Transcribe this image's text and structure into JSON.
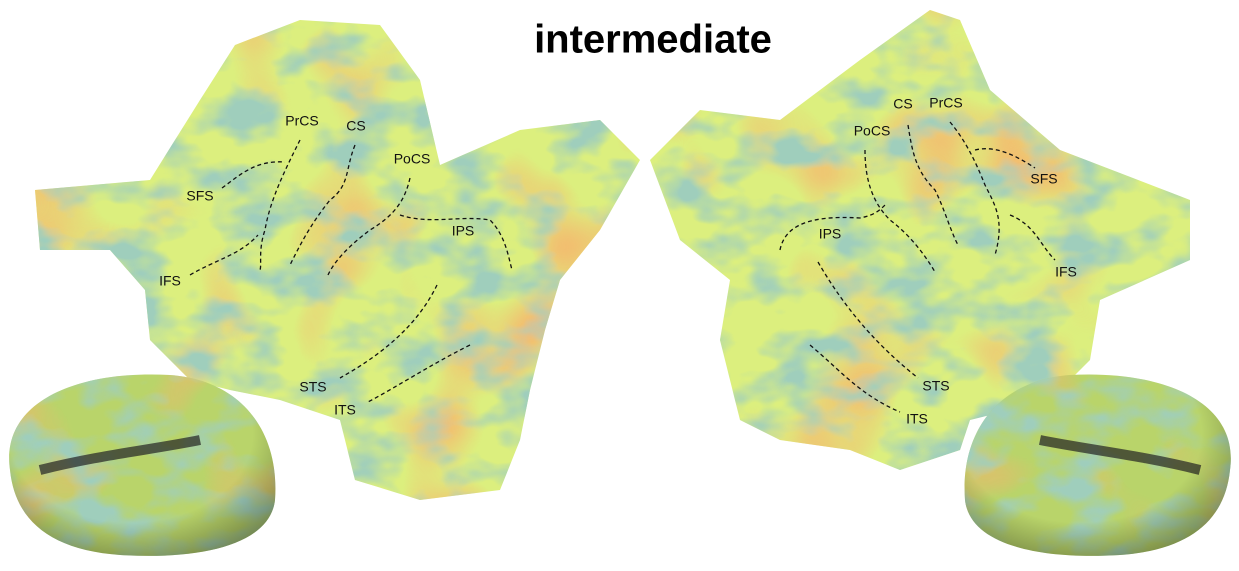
{
  "title": "intermediate",
  "left_hemisphere": {
    "labels": [
      "PrCS",
      "CS",
      "PoCS",
      "SFS",
      "IPS",
      "IFS",
      "STS",
      "ITS"
    ]
  },
  "right_hemisphere": {
    "labels": [
      "CS",
      "PrCS",
      "PoCS",
      "SFS",
      "IPS",
      "IFS",
      "STS",
      "ITS"
    ]
  }
}
